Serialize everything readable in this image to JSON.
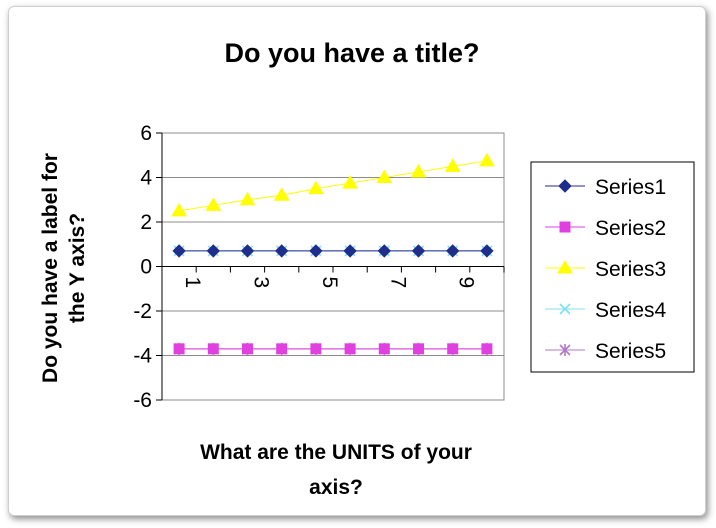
{
  "chart_data": {
    "type": "line",
    "title": "Do you have a title?",
    "ylabel_lines": [
      "Do you have a label for",
      "the Y axis?"
    ],
    "xlabel_lines": [
      "What are the UNITS of your",
      "axis?"
    ],
    "x": [
      1,
      2,
      3,
      4,
      5,
      6,
      7,
      8,
      9,
      10
    ],
    "x_tick_labels": [
      "1",
      "",
      "3",
      "",
      "5",
      "",
      "7",
      "",
      "9",
      ""
    ],
    "ylim": [
      -6,
      6
    ],
    "y_ticks": [
      6,
      4,
      2,
      0,
      -2,
      -4,
      -6
    ],
    "grid": true,
    "legend_position": "right",
    "series": [
      {
        "name": "Series1",
        "values": [
          0.7,
          0.7,
          0.7,
          0.7,
          0.7,
          0.7,
          0.7,
          0.7,
          0.7,
          0.7
        ],
        "color": "#1f2e8c",
        "marker": "diamond"
      },
      {
        "name": "Series2",
        "values": [
          -3.7,
          -3.7,
          -3.7,
          -3.7,
          -3.7,
          -3.7,
          -3.7,
          -3.7,
          -3.7,
          -3.7
        ],
        "color": "#e040e0",
        "marker": "square"
      },
      {
        "name": "Series3",
        "values": [
          2.5,
          2.75,
          3.0,
          3.2,
          3.5,
          3.75,
          4.0,
          4.25,
          4.5,
          4.75
        ],
        "color": "#ffff00",
        "marker": "triangle"
      },
      {
        "name": "Series4",
        "values": [
          0.7,
          0.7,
          0.7,
          0.7,
          0.7,
          0.7,
          0.7,
          0.7,
          0.7,
          0.7
        ],
        "color": "#7fe0f0",
        "marker": "x"
      },
      {
        "name": "Series5",
        "values": [
          -3.7,
          -3.7,
          -3.7,
          -3.7,
          -3.7,
          -3.7,
          -3.7,
          -3.7,
          -3.7,
          -3.7
        ],
        "color": "#b07ac8",
        "marker": "star"
      }
    ]
  }
}
